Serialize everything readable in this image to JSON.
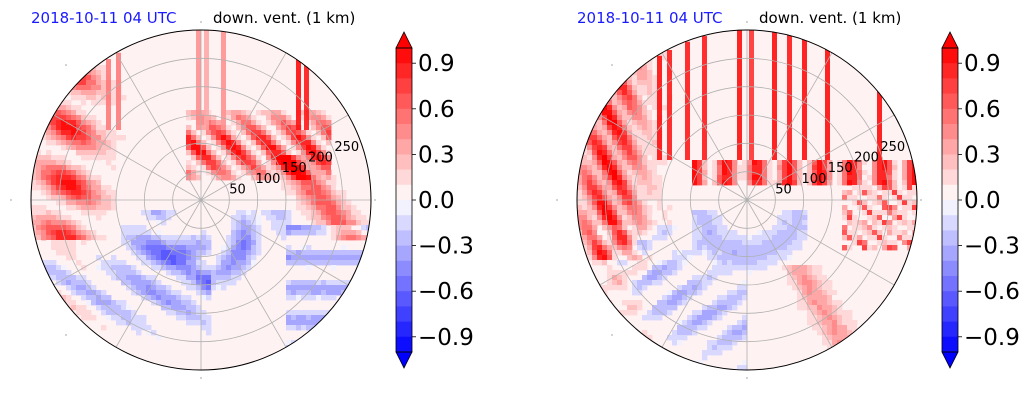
{
  "colors": {
    "positive": "#ff0000",
    "negative": "#0000ff",
    "neutral": "#ffffff",
    "title_date": "#1a1aff",
    "grid": "#b0b0b0"
  },
  "chart_data": [
    {
      "type": "heatmap",
      "projection": "polar",
      "title_left": "2018-10-11 04 UTC",
      "title_right": "down. vent. (1 km)",
      "radial_ticks": [
        "50",
        "100",
        "150",
        "200",
        "250"
      ],
      "radial_max": 300,
      "colorbar": {
        "ticks": [
          "0.9",
          "0.6",
          "0.3",
          "0.0",
          "−0.3",
          "−0.6",
          "−0.9"
        ],
        "tick_values": [
          0.9,
          0.6,
          0.3,
          0.0,
          -0.3,
          -0.6,
          -0.9
        ],
        "range": [
          -1.0,
          1.0
        ],
        "extend": "both",
        "levels": 20,
        "colormap": "bwr"
      },
      "grid": true
    },
    {
      "type": "heatmap",
      "projection": "polar",
      "title_left": "2018-10-11 04 UTC",
      "title_right": "down. vent. (1 km)",
      "radial_ticks": [
        "50",
        "100",
        "150",
        "200",
        "250"
      ],
      "radial_max": 300,
      "colorbar": {
        "ticks": [
          "0.9",
          "0.6",
          "0.3",
          "0.0",
          "−0.3",
          "−0.6",
          "−0.9"
        ],
        "tick_values": [
          0.9,
          0.6,
          0.3,
          0.0,
          -0.3,
          -0.6,
          -0.9
        ],
        "range": [
          -1.0,
          1.0
        ],
        "extend": "both",
        "levels": 20,
        "colormap": "bwr"
      },
      "grid": true
    }
  ]
}
